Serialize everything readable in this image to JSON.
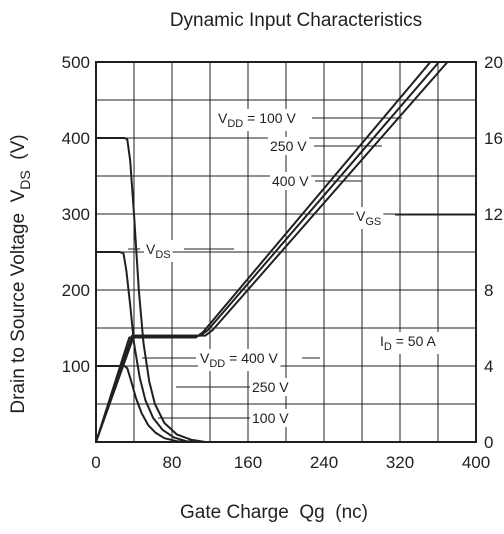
{
  "chart_data": {
    "type": "line",
    "title": "Dynamic Input Characteristics",
    "xlabel": "Gate Charge  Qg  (nc)",
    "ylabel": "Drain to Source Voltage  V",
    "ylabel_sub": "DS",
    "ylabel_unit": "  (V)",
    "xlim": [
      0,
      400
    ],
    "ylim": [
      0,
      500
    ],
    "y2lim": [
      0,
      20
    ],
    "x_ticks": [
      0,
      80,
      160,
      240,
      320,
      400
    ],
    "x_tick_labels": [
      "0",
      "80",
      "160",
      "240",
      "320",
      "400"
    ],
    "y_ticks": [
      100,
      200,
      300,
      400,
      500
    ],
    "y_tick_labels": [
      "100",
      "200",
      "300",
      "400",
      "500"
    ],
    "y2_ticks": [
      0,
      4,
      8,
      12,
      16,
      20
    ],
    "y2_tick_labels": [
      "0",
      "4",
      "8",
      "12",
      "16",
      "20"
    ],
    "grid": true,
    "series": [
      {
        "name": "VDS (VDD = 400 V)",
        "axis": "left",
        "points": [
          [
            0,
            400
          ],
          [
            30,
            400
          ],
          [
            33,
            398
          ],
          [
            36,
            370
          ],
          [
            40,
            300
          ],
          [
            45,
            200
          ],
          [
            50,
            130
          ],
          [
            56,
            80
          ],
          [
            62,
            50
          ],
          [
            72,
            25
          ],
          [
            85,
            10
          ],
          [
            100,
            3
          ],
          [
            115,
            0
          ],
          [
            400,
            0
          ]
        ]
      },
      {
        "name": "VDS (VDD = 250 V)",
        "axis": "left",
        "points": [
          [
            0,
            250
          ],
          [
            25,
            250
          ],
          [
            29,
            248
          ],
          [
            32,
            225
          ],
          [
            36,
            180
          ],
          [
            40,
            130
          ],
          [
            46,
            85
          ],
          [
            52,
            55
          ],
          [
            60,
            32
          ],
          [
            70,
            16
          ],
          [
            82,
            6
          ],
          [
            95,
            1
          ],
          [
            110,
            0
          ],
          [
            400,
            0
          ]
        ]
      },
      {
        "name": "VDS (VDD = 100 V)",
        "axis": "left",
        "points": [
          [
            0,
            100
          ],
          [
            30,
            100
          ],
          [
            33,
            97
          ],
          [
            37,
            80
          ],
          [
            42,
            58
          ],
          [
            48,
            38
          ],
          [
            55,
            22
          ],
          [
            63,
            12
          ],
          [
            72,
            5
          ],
          [
            85,
            1
          ],
          [
            100,
            0
          ],
          [
            400,
            0
          ]
        ]
      },
      {
        "name": "VGS (VDD = 100 V)",
        "axis": "right",
        "points": [
          [
            0,
            0
          ],
          [
            35,
            5.5
          ],
          [
            105,
            5.5
          ],
          [
            113,
            5.8
          ],
          [
            352,
            20
          ]
        ]
      },
      {
        "name": "VGS (VDD = 250 V)",
        "axis": "right",
        "points": [
          [
            0,
            0
          ],
          [
            38,
            5.6
          ],
          [
            110,
            5.6
          ],
          [
            118,
            5.9
          ],
          [
            361,
            20
          ]
        ]
      },
      {
        "name": "VGS (VDD = 400 V)",
        "axis": "right",
        "points": [
          [
            0,
            0
          ],
          [
            40,
            5.6
          ],
          [
            115,
            5.6
          ],
          [
            123,
            5.9
          ],
          [
            370,
            20
          ]
        ]
      }
    ],
    "annotations": [
      {
        "text": "V",
        "sub": "DD",
        "rest": " = 100 V",
        "key": "vdd100_top"
      },
      {
        "text": "250 V",
        "key": "v250_top"
      },
      {
        "text": "400 V",
        "key": "v400_top"
      },
      {
        "text": "V",
        "sub": "GS",
        "rest": "",
        "key": "vgs"
      },
      {
        "text": "V",
        "sub": "DS",
        "rest": "",
        "key": "vds"
      },
      {
        "text": "I",
        "sub": "D",
        "rest": " = 50 A",
        "key": "id"
      },
      {
        "text": "V",
        "sub": "DD",
        "rest": " = 400 V",
        "key": "vdd400_bottom"
      },
      {
        "text": "250 V",
        "key": "v250_bottom"
      },
      {
        "text": "100 V",
        "key": "v100_bottom"
      }
    ]
  },
  "colors": {
    "line": "#231f20",
    "background": "#ffffff"
  }
}
